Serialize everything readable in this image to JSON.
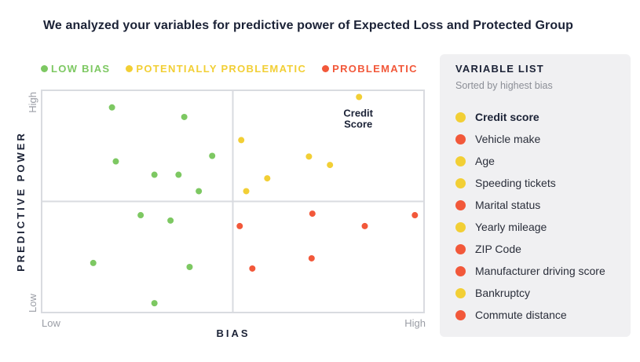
{
  "headline": "We analyzed your variables for predictive power of Expected Loss and Protected Group",
  "colors": {
    "low": "#7dc862",
    "potential": "#f2cf35",
    "problematic": "#f2583a",
    "grid": "#d9dbe0",
    "axis_text": "#9a9da5",
    "axis_title": "#1b2236"
  },
  "legend": [
    {
      "label": "LOW BIAS",
      "color": "#7dc862",
      "text_color": "#7dc862"
    },
    {
      "label": "POTENTIALLY PROBLEMATIC",
      "color": "#f2cf35",
      "text_color": "#f2cf35"
    },
    {
      "label": "PROBLEMATIC",
      "color": "#f2583a",
      "text_color": "#f2583a"
    }
  ],
  "chart_data": {
    "type": "scatter",
    "title": "",
    "xlabel": "BIAS",
    "ylabel": "PREDICTIVE POWER",
    "xlim": [
      0,
      100
    ],
    "ylim": [
      0,
      100
    ],
    "x_low_label": "Low",
    "x_high_label": "High",
    "y_low_label": "Low",
    "y_high_label": "High",
    "quadrant_split": {
      "x": 50,
      "y": 50
    },
    "annotation": {
      "text_lines": [
        "Credit",
        "Score"
      ],
      "x": 83,
      "y": 97
    },
    "series": [
      {
        "name": "LOW BIAS",
        "category": "low",
        "points": [
          {
            "x": 18.4,
            "y": 92.3
          },
          {
            "x": 37.3,
            "y": 88.0
          },
          {
            "x": 19.4,
            "y": 68.0
          },
          {
            "x": 29.5,
            "y": 62.0
          },
          {
            "x": 35.8,
            "y": 62.0
          },
          {
            "x": 44.6,
            "y": 70.5
          },
          {
            "x": 41.1,
            "y": 54.6
          },
          {
            "x": 25.9,
            "y": 43.8
          },
          {
            "x": 33.7,
            "y": 41.4
          },
          {
            "x": 13.5,
            "y": 22.3
          },
          {
            "x": 38.7,
            "y": 20.5
          },
          {
            "x": 29.5,
            "y": 4.2
          }
        ]
      },
      {
        "name": "POTENTIALLY PROBLEMATIC",
        "category": "potential",
        "points": [
          {
            "x": 83.0,
            "y": 97.0
          },
          {
            "x": 52.2,
            "y": 77.6
          },
          {
            "x": 69.9,
            "y": 70.2
          },
          {
            "x": 75.4,
            "y": 66.4
          },
          {
            "x": 59.0,
            "y": 60.4
          },
          {
            "x": 53.5,
            "y": 54.6
          }
        ]
      },
      {
        "name": "PROBLEMATIC",
        "category": "problematic",
        "points": [
          {
            "x": 70.8,
            "y": 44.5
          },
          {
            "x": 97.6,
            "y": 43.8
          },
          {
            "x": 51.8,
            "y": 38.9
          },
          {
            "x": 84.5,
            "y": 38.9
          },
          {
            "x": 70.6,
            "y": 24.4
          },
          {
            "x": 55.1,
            "y": 19.8
          }
        ]
      }
    ]
  },
  "variable_list": {
    "title": "VARIABLE LIST",
    "subtitle": "Sorted by highest bias",
    "items": [
      {
        "label": "Credit score",
        "category": "potential",
        "highlight": true
      },
      {
        "label": "Vehicle make",
        "category": "problematic",
        "highlight": false
      },
      {
        "label": "Age",
        "category": "potential",
        "highlight": false
      },
      {
        "label": "Speeding tickets",
        "category": "potential",
        "highlight": false
      },
      {
        "label": "Marital status",
        "category": "problematic",
        "highlight": false
      },
      {
        "label": "Yearly mileage",
        "category": "potential",
        "highlight": false
      },
      {
        "label": "ZIP Code",
        "category": "problematic",
        "highlight": false
      },
      {
        "label": "Manufacturer driving score",
        "category": "problematic",
        "highlight": false
      },
      {
        "label": "Bankruptcy",
        "category": "potential",
        "highlight": false
      },
      {
        "label": "Commute distance",
        "category": "problematic",
        "highlight": false
      }
    ]
  }
}
